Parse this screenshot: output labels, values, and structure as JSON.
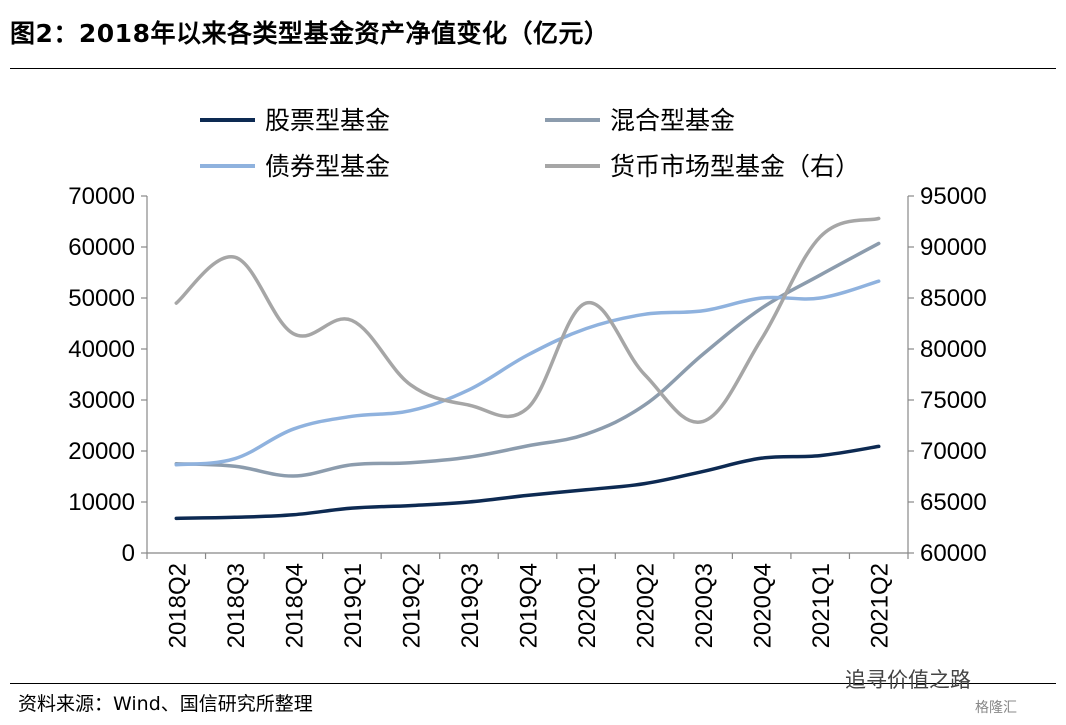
{
  "header": {
    "title": "图2：2018年以来各类型基金资产净值变化（亿元）"
  },
  "footer": {
    "source": "资料来源：Wind、国信研究所整理",
    "watermark": "追寻价值之路",
    "watermark_brand": "格隆汇"
  },
  "chart_data": {
    "type": "line",
    "categories": [
      "2018Q2",
      "2018Q3",
      "2018Q4",
      "2019Q1",
      "2019Q2",
      "2019Q3",
      "2019Q4",
      "2020Q1",
      "2020Q2",
      "2020Q3",
      "2020Q4",
      "2021Q1",
      "2021Q2"
    ],
    "left_axis": {
      "ylim": [
        0,
        70000
      ],
      "ticks": [
        "0",
        "10000",
        "20000",
        "30000",
        "40000",
        "50000",
        "60000",
        "70000"
      ]
    },
    "right_axis": {
      "ylim": [
        60000,
        95000
      ],
      "ticks": [
        "60000",
        "65000",
        "70000",
        "75000",
        "80000",
        "85000",
        "90000",
        "95000"
      ]
    },
    "legend": {
      "placement": "top"
    },
    "grid": false,
    "series": [
      {
        "name": "股票型基金",
        "axis": "left",
        "color": "#0d2a52",
        "values": [
          6800,
          7000,
          7500,
          8800,
          9300,
          10000,
          11300,
          12400,
          13600,
          16000,
          18600,
          19100,
          20900
        ]
      },
      {
        "name": "混合型基金",
        "axis": "left",
        "color": "#8c9cad",
        "values": [
          17500,
          17000,
          15100,
          17300,
          17700,
          18800,
          21000,
          23300,
          29000,
          39000,
          48000,
          54500,
          60700
        ]
      },
      {
        "name": "债券型基金",
        "axis": "left",
        "color": "#8fb2de",
        "values": [
          17300,
          18500,
          24300,
          26800,
          27900,
          32000,
          38800,
          44000,
          46800,
          47500,
          50000,
          50000,
          53300
        ]
      },
      {
        "name": "货币市场型基金（右）",
        "axis": "right",
        "color": "#a6a6a6",
        "values": [
          84500,
          89000,
          81500,
          82800,
          76500,
          74500,
          74200,
          84500,
          77500,
          72900,
          81000,
          91000,
          92800
        ]
      }
    ]
  }
}
